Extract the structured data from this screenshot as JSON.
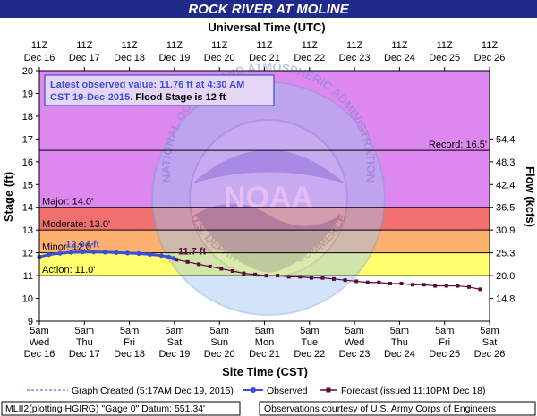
{
  "header": {
    "title": "ROCK RIVER AT MOLINE",
    "top_axis_title": "Universal Time (UTC)",
    "bottom_axis_title": "Site Time (CST)",
    "left_axis_title": "Stage (ft)",
    "right_axis_title": "Flow (kcfs)"
  },
  "info_box": {
    "line1": "Latest observed value: 11.76 ft at 4:30 AM",
    "line2_blue": "CST 19-Dec-2015.",
    "line2_black": " Flood Stage is 12  ft"
  },
  "legend": {
    "graph_created": "Graph Created (5:17AM Dec 19, 2015)",
    "observed": "Observed",
    "forecast": "Forecast (issued 11:10PM Dec 18)"
  },
  "footer": {
    "datum": "MLII2(plotting HGIRG) \"Gage 0\" Datum:  551.34'",
    "courtesy": "Observations courtesy of U.S. Army Corps of Engineers"
  },
  "watermark": {
    "outer_ring": "NATIONAL OCEANIC AND ATMOSPHERIC ADMINISTRATION",
    "inner_ring": "U.S. DEPARTMENT OF COMMERCE",
    "center": "NOAA"
  },
  "colors": {
    "title_bar": "#1f2a8a",
    "record_zone": "#dd88ee",
    "major_zone": "#f07070",
    "moderate_zone": "#fcb070",
    "minor_zone": "#ffff70",
    "below_action": "#ffffff",
    "observed_line": "#3a4ed8",
    "forecast_line": "#5a0a3c"
  },
  "chart_data": {
    "type": "line",
    "title": "ROCK RIVER AT MOLINE",
    "xlabel": "Site Time (CST)",
    "x2label": "Universal Time (UTC)",
    "ylabel": "Stage (ft)",
    "y2label": "Flow (kcfs)",
    "ylim": [
      9,
      20
    ],
    "xlim": [
      "2015-12-16 05:00",
      "2015-12-26 05:00"
    ],
    "grid": false,
    "legend": "bottom",
    "yticks": [
      "9",
      "10",
      "11",
      "12",
      "13",
      "14",
      "15",
      "16",
      "17",
      "18",
      "19",
      "20"
    ],
    "xticks_bottom": [
      {
        "t": "5am",
        "d": "Wed",
        "dt": "Dec 16"
      },
      {
        "t": "5am",
        "d": "Thu",
        "dt": "Dec 17"
      },
      {
        "t": "5am",
        "d": "Fri",
        "dt": "Dec 18"
      },
      {
        "t": "5am",
        "d": "Sat",
        "dt": "Dec 19"
      },
      {
        "t": "5am",
        "d": "Sun",
        "dt": "Dec 20"
      },
      {
        "t": "5am",
        "d": "Mon",
        "dt": "Dec 21"
      },
      {
        "t": "5am",
        "d": "Tue",
        "dt": "Dec 22"
      },
      {
        "t": "5am",
        "d": "Wed",
        "dt": "Dec 23"
      },
      {
        "t": "5am",
        "d": "Thu",
        "dt": "Dec 24"
      },
      {
        "t": "5am",
        "d": "Fri",
        "dt": "Dec 25"
      },
      {
        "t": "5am",
        "d": "Sat",
        "dt": "Dec 26"
      }
    ],
    "xticks_top": [
      {
        "t": "11Z",
        "dt": "Dec 16"
      },
      {
        "t": "11Z",
        "dt": "Dec 17"
      },
      {
        "t": "11Z",
        "dt": "Dec 18"
      },
      {
        "t": "11Z",
        "dt": "Dec 19"
      },
      {
        "t": "11Z",
        "dt": "Dec 20"
      },
      {
        "t": "11Z",
        "dt": "Dec 21"
      },
      {
        "t": "11Z",
        "dt": "Dec 22"
      },
      {
        "t": "11Z",
        "dt": "Dec 23"
      },
      {
        "t": "11Z",
        "dt": "Dec 24"
      },
      {
        "t": "11Z",
        "dt": "Dec 25"
      },
      {
        "t": "11Z",
        "dt": "Dec 26"
      }
    ],
    "flow_ticks": [
      {
        "stage": 10.0,
        "label": "14.8"
      },
      {
        "stage": 11.0,
        "label": "20.0"
      },
      {
        "stage": 12.0,
        "label": "25.3"
      },
      {
        "stage": 13.0,
        "label": "30.9"
      },
      {
        "stage": 14.0,
        "label": "36.5"
      },
      {
        "stage": 15.0,
        "label": "42.4"
      },
      {
        "stage": 16.0,
        "label": "48.3"
      },
      {
        "stage": 17.0,
        "label": "54.4"
      }
    ],
    "stage_levels": [
      {
        "name": "Record",
        "value": 16.5,
        "label": "Record: 16.5'"
      },
      {
        "name": "Major",
        "value": 14.0,
        "label": "Major: 14.0'"
      },
      {
        "name": "Moderate",
        "value": 13.0,
        "label": "Moderate: 13.0'"
      },
      {
        "name": "Minor",
        "value": 12.0,
        "label": "Minor: 12.0'"
      },
      {
        "name": "Action",
        "value": 11.0,
        "label": "Action: 11.0'"
      }
    ],
    "graph_created": "2015-12-19 05:17",
    "observed": {
      "name": "Observed",
      "peak_label": "12.04 ft",
      "x": [
        "2015-12-16 05:00",
        "2015-12-16 10:00",
        "2015-12-16 16:00",
        "2015-12-16 22:00",
        "2015-12-17 04:00",
        "2015-12-17 10:00",
        "2015-12-17 16:00",
        "2015-12-17 22:00",
        "2015-12-18 04:00",
        "2015-12-18 10:00",
        "2015-12-18 16:00",
        "2015-12-18 22:00",
        "2015-12-19 02:00",
        "2015-12-19 04:30"
      ],
      "y": [
        11.82,
        11.92,
        11.98,
        12.02,
        12.04,
        12.04,
        12.03,
        12.01,
        11.99,
        11.97,
        11.93,
        11.88,
        11.82,
        11.76
      ]
    },
    "forecast": {
      "name": "Forecast (issued 11:10PM Dec 18)",
      "start_label": "11.7 ft",
      "x": [
        "2015-12-19 06:00",
        "2015-12-19 12:00",
        "2015-12-19 18:00",
        "2015-12-20 00:00",
        "2015-12-20 06:00",
        "2015-12-20 12:00",
        "2015-12-20 18:00",
        "2015-12-21 00:00",
        "2015-12-21 06:00",
        "2015-12-21 12:00",
        "2015-12-21 18:00",
        "2015-12-22 00:00",
        "2015-12-22 06:00",
        "2015-12-22 12:00",
        "2015-12-22 18:00",
        "2015-12-23 00:00",
        "2015-12-23 06:00",
        "2015-12-23 12:00",
        "2015-12-23 18:00",
        "2015-12-24 00:00",
        "2015-12-24 06:00",
        "2015-12-24 12:00",
        "2015-12-24 18:00",
        "2015-12-25 00:00",
        "2015-12-25 06:00",
        "2015-12-25 12:00",
        "2015-12-25 18:00",
        "2015-12-26 00:00"
      ],
      "y": [
        11.7,
        11.6,
        11.5,
        11.4,
        11.3,
        11.2,
        11.1,
        11.05,
        11.0,
        11.0,
        10.95,
        10.95,
        10.9,
        10.9,
        10.85,
        10.8,
        10.75,
        10.7,
        10.7,
        10.65,
        10.65,
        10.6,
        10.6,
        10.55,
        10.55,
        10.55,
        10.5,
        10.4
      ]
    }
  }
}
